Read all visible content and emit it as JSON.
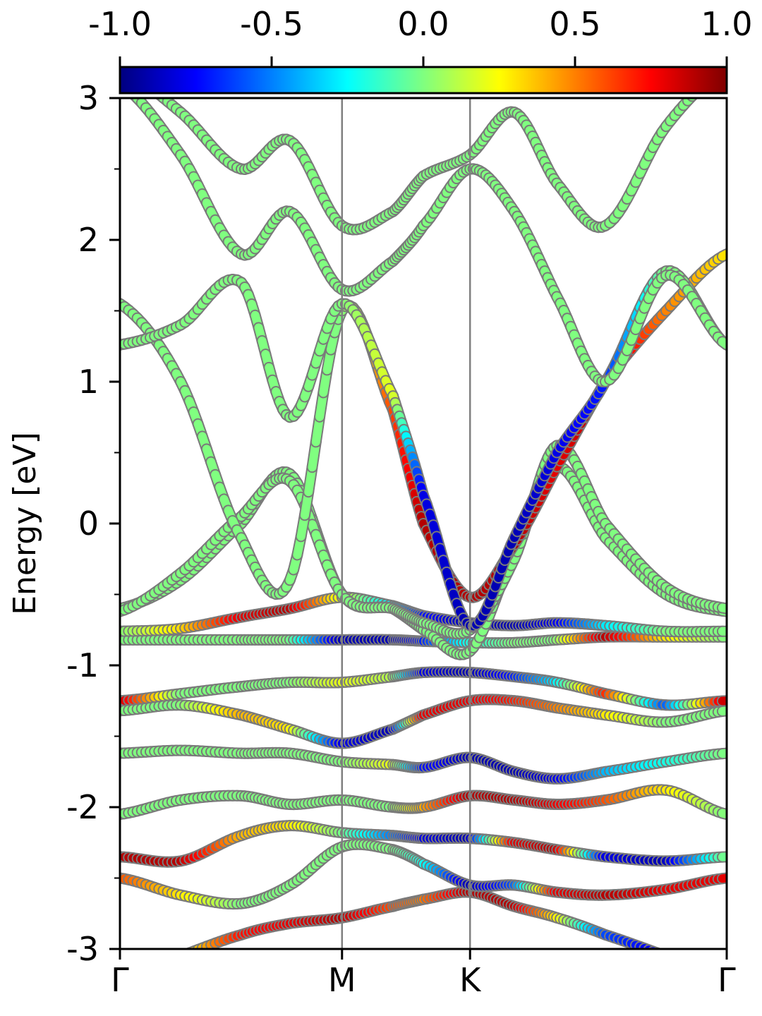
{
  "chart_data": {
    "type": "line",
    "ylabel": "Energy [eV]",
    "ylim": [
      -3,
      3
    ],
    "y_ticks": [
      "-3",
      "-2",
      "-1",
      "0",
      "1",
      "2",
      "3"
    ],
    "x_ticks": [
      "Γ",
      "M",
      "K",
      "Γ"
    ],
    "x_tick_positions": [
      0,
      0.366,
      0.577,
      1.0
    ],
    "colorbar": {
      "colormap": "jet",
      "range": [
        -1.0,
        1.0
      ],
      "tick_labels": [
        "-1.0",
        "-0.5",
        "0.0",
        "0.5",
        "1.0"
      ]
    },
    "k_path": [
      0.0,
      0.1,
      0.2,
      0.28,
      0.366,
      0.45,
      0.5,
      0.577,
      0.65,
      0.72,
      0.8,
      0.9,
      1.0
    ],
    "bands": [
      {
        "energies": [
          -3.2,
          -3.05,
          -2.9,
          -2.82,
          -2.78,
          -2.7,
          -2.65,
          -2.6,
          -2.7,
          -2.78,
          -2.9,
          -3.05,
          -3.2
        ],
        "weights": [
          0,
          0.2,
          0.7,
          0.8,
          0.9,
          0.6,
          0.5,
          0.9,
          0.9,
          0.3,
          -0.6,
          -0.8,
          -0.9
        ]
      },
      {
        "energies": [
          -2.5,
          -2.62,
          -2.68,
          -2.55,
          -2.28,
          -2.3,
          -2.4,
          -2.55,
          -2.55,
          -2.6,
          -2.62,
          -2.58,
          -2.5
        ],
        "weights": [
          0.6,
          0.3,
          0.0,
          0.0,
          0.0,
          0.0,
          -0.2,
          -0.9,
          -0.6,
          0.8,
          0.9,
          0.8,
          0.8
        ]
      },
      {
        "energies": [
          -2.35,
          -2.38,
          -2.2,
          -2.13,
          -2.18,
          -2.2,
          -2.22,
          -2.22,
          -2.25,
          -2.3,
          -2.35,
          -2.38,
          -2.35
        ],
        "weights": [
          0.9,
          0.9,
          0.4,
          0.3,
          0.0,
          -0.5,
          -0.8,
          -0.9,
          0.8,
          0.9,
          -0.8,
          -0.9,
          0.0
        ]
      },
      {
        "energies": [
          -2.05,
          -1.95,
          -1.92,
          -1.98,
          -1.95,
          -2.0,
          -2.0,
          -1.92,
          -1.95,
          -1.98,
          -1.95,
          -1.88,
          -2.05
        ],
        "weights": [
          0.0,
          0.0,
          0.0,
          0.0,
          0.0,
          0.0,
          0.4,
          0.9,
          0.9,
          0.8,
          0.6,
          0.3,
          0.0
        ]
      },
      {
        "energies": [
          -1.62,
          -1.6,
          -1.62,
          -1.62,
          -1.68,
          -1.7,
          -1.72,
          -1.65,
          -1.75,
          -1.8,
          -1.75,
          -1.68,
          -1.62
        ],
        "weights": [
          0.0,
          0.0,
          0.0,
          0.0,
          0.0,
          0.2,
          -0.7,
          -0.9,
          -0.9,
          -0.8,
          -0.4,
          -0.2,
          0.0
        ]
      },
      {
        "energies": [
          -1.32,
          -1.28,
          -1.35,
          -1.45,
          -1.55,
          -1.45,
          -1.35,
          -1.25,
          -1.25,
          -1.3,
          -1.35,
          -1.4,
          -1.32
        ],
        "weights": [
          0.0,
          0.0,
          0.4,
          0.3,
          -0.8,
          -0.9,
          0.8,
          0.8,
          0.7,
          0.5,
          0.3,
          0.0,
          0.0
        ]
      },
      {
        "energies": [
          -1.25,
          -1.2,
          -1.15,
          -1.12,
          -1.12,
          -1.08,
          -1.05,
          -1.05,
          -1.08,
          -1.12,
          -1.2,
          -1.28,
          -1.25
        ],
        "weights": [
          0.9,
          0.0,
          0.0,
          0.0,
          0.2,
          0.1,
          -0.8,
          -0.9,
          -0.7,
          -0.3,
          0.7,
          -0.6,
          0.9
        ]
      },
      {
        "energies": [
          -0.82,
          -0.82,
          -0.82,
          -0.82,
          -0.82,
          -0.82,
          -0.83,
          -0.84,
          -0.84,
          -0.82,
          -0.8,
          -0.8,
          -0.8
        ],
        "weights": [
          0.0,
          0.0,
          0.0,
          0.0,
          -0.9,
          -0.9,
          -0.7,
          -0.2,
          0.0,
          0.0,
          0.9,
          0.3,
          0.0
        ]
      },
      {
        "energies": [
          -0.76,
          -0.74,
          -0.66,
          -0.6,
          -0.52,
          -0.58,
          -0.65,
          -0.7,
          -0.72,
          -0.7,
          -0.72,
          -0.76,
          -0.76
        ],
        "weights": [
          0.0,
          0.3,
          0.8,
          0.9,
          0.2,
          -0.3,
          -0.7,
          -0.9,
          -0.9,
          -0.8,
          -0.3,
          0.0,
          0.0
        ]
      },
      {
        "energies": [
          -0.6,
          -0.4,
          0.0,
          0.35,
          -0.5,
          -0.6,
          -0.75,
          -0.9,
          -0.2,
          0.4,
          -0.1,
          -0.5,
          -0.62
        ],
        "weights": [
          0.0,
          0.0,
          0.0,
          0.0,
          0.0,
          0.0,
          0.0,
          0.0,
          0.0,
          0.0,
          0.0,
          0.0,
          0.0
        ]
      },
      {
        "energies": [
          -0.62,
          -0.35,
          0.05,
          0.3,
          -0.5,
          -0.6,
          -0.7,
          -0.75,
          -0.25,
          0.55,
          0.0,
          -0.45,
          -0.6
        ],
        "weights": [
          0.0,
          0.0,
          0.0,
          0.0,
          0.0,
          0.0,
          0.0,
          0.0,
          0.0,
          0.0,
          0.0,
          0.0,
          0.0
        ]
      },
      {
        "energies": [
          1.55,
          1.0,
          -0.1,
          -0.4,
          1.5,
          0.8,
          0.0,
          -0.52,
          -0.15,
          0.4,
          1.0,
          1.5,
          1.9
        ],
        "weights": [
          0.0,
          0.0,
          0.0,
          0.0,
          0.0,
          0.6,
          0.9,
          0.9,
          0.9,
          0.8,
          0.9,
          0.5,
          0.3
        ]
      },
      {
        "energies": [
          1.26,
          1.4,
          1.7,
          0.75,
          1.55,
          0.9,
          0.2,
          -0.72,
          -0.1,
          0.5,
          1.0,
          1.78,
          1.26
        ],
        "weights": [
          0.0,
          0.0,
          0.0,
          0.0,
          0.0,
          0.2,
          -0.8,
          -0.9,
          -0.9,
          -0.8,
          -0.7,
          0.0,
          0.0
        ]
      },
      {
        "energies": [
          3.1,
          2.6,
          1.9,
          2.2,
          1.65,
          1.85,
          2.1,
          2.5,
          2.2,
          1.6,
          1.0,
          1.75,
          1.26
        ],
        "weights": [
          0.0,
          0.0,
          0.0,
          0.0,
          0.0,
          0.0,
          0.0,
          0.0,
          0.0,
          0.0,
          0.0,
          0.0,
          0.0
        ]
      },
      {
        "energies": [
          3.2,
          2.9,
          2.5,
          2.7,
          2.1,
          2.2,
          2.45,
          2.6,
          2.9,
          2.4,
          2.1,
          2.8,
          3.2
        ],
        "weights": [
          0.0,
          0.0,
          0.0,
          0.0,
          0.0,
          0.0,
          0.0,
          0.0,
          0.0,
          0.0,
          0.0,
          0.0,
          0.0
        ]
      }
    ]
  }
}
